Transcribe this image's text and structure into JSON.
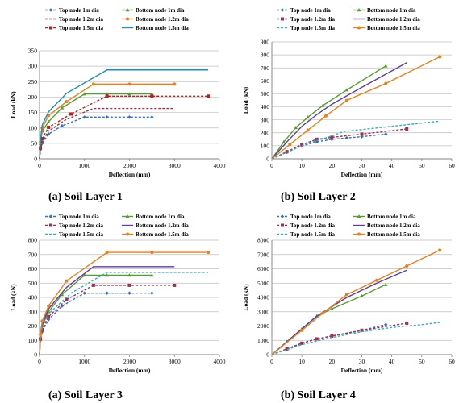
{
  "chart_data": [
    {
      "type": "line",
      "caption": "(a) Soil Layer 1",
      "xlabel": "Deflection (mm)",
      "ylabel": "Load (kN)",
      "xlim": [
        0,
        4000
      ],
      "ylim": [
        0,
        350
      ],
      "xticks": [
        0,
        1000,
        2000,
        3000,
        4000
      ],
      "yticks": [
        0,
        50,
        100,
        150,
        200,
        250,
        300,
        350
      ],
      "grid": "horizontal",
      "legend_position": "top",
      "series": [
        {
          "name": "Top node 1m dia",
          "color": "#3B6FB6",
          "dash": "dashed",
          "marker": "diamond",
          "points": [
            [
              0,
              0
            ],
            [
              20,
              30
            ],
            [
              60,
              50
            ],
            [
              200,
              80
            ],
            [
              500,
              107
            ],
            [
              1000,
              135
            ],
            [
              1500,
              135
            ],
            [
              2000,
              135
            ],
            [
              2500,
              135
            ]
          ]
        },
        {
          "name": "Bottom node 1m dia",
          "color": "#5A9A32",
          "dash": "solid",
          "marker": "triangle",
          "points": [
            [
              0,
              0
            ],
            [
              20,
              50
            ],
            [
              60,
              90
            ],
            [
              200,
              120
            ],
            [
              500,
              165
            ],
            [
              1000,
              210
            ],
            [
              1500,
              210
            ],
            [
              2000,
              210
            ],
            [
              2500,
              210
            ]
          ]
        },
        {
          "name": "Top node 1.2m dia",
          "color": "#A0304F",
          "dash": "dashed",
          "marker": "none",
          "points": [
            [
              0,
              0
            ],
            [
              20,
              32
            ],
            [
              60,
              55
            ],
            [
              200,
              90
            ],
            [
              600,
              128
            ],
            [
              1200,
              163
            ],
            [
              2000,
              163
            ],
            [
              3000,
              163
            ]
          ]
        },
        {
          "name": "Bottom node 1.2m dia",
          "color": "#E8801E",
          "dash": "solid",
          "marker": "circle",
          "points": [
            [
              0,
              0
            ],
            [
              20,
              55
            ],
            [
              60,
              100
            ],
            [
              200,
              140
            ],
            [
              600,
              185
            ],
            [
              1200,
              242
            ],
            [
              2000,
              242
            ],
            [
              3000,
              242
            ]
          ]
        },
        {
          "name": "Top node 1.5m dia",
          "color": "#B22222",
          "dash": "dashed",
          "marker": "square",
          "points": [
            [
              0,
              0
            ],
            [
              20,
              35
            ],
            [
              60,
              65
            ],
            [
              200,
              102
            ],
            [
              700,
              145
            ],
            [
              1500,
              203
            ],
            [
              2500,
              203
            ],
            [
              3750,
              203
            ]
          ]
        },
        {
          "name": "Bottom node 1.5m dia",
          "color": "#1E8FB8",
          "dash": "solid",
          "marker": "none",
          "points": [
            [
              0,
              0
            ],
            [
              20,
              60
            ],
            [
              60,
              110
            ],
            [
              200,
              152
            ],
            [
              600,
              212
            ],
            [
              1500,
              288
            ],
            [
              2500,
              288
            ],
            [
              3750,
              288
            ]
          ]
        }
      ]
    },
    {
      "type": "line",
      "caption": "(b) Soil Layer 2",
      "xlabel": "Deflection (mm)",
      "ylabel": "Load (kN)",
      "xlim": [
        0,
        60
      ],
      "ylim": [
        0,
        900
      ],
      "xticks": [
        0,
        10,
        20,
        30,
        40,
        50,
        60
      ],
      "yticks": [
        0,
        100,
        200,
        300,
        400,
        500,
        600,
        700,
        800,
        900
      ],
      "grid": "horizontal",
      "legend_position": "top",
      "series": [
        {
          "name": "Top node 1m dia",
          "color": "#3B6FB6",
          "dash": "dashed",
          "marker": "diamond",
          "points": [
            [
              0,
              0
            ],
            [
              5,
              50
            ],
            [
              10,
              100
            ],
            [
              15,
              130
            ],
            [
              20,
              150
            ],
            [
              25,
              160
            ],
            [
              30,
              170
            ],
            [
              38,
              190
            ]
          ]
        },
        {
          "name": "Bottom node 1m dia",
          "color": "#5A9A32",
          "dash": "solid",
          "marker": "triangle",
          "points": [
            [
              0,
              0
            ],
            [
              4,
              130
            ],
            [
              8,
              240
            ],
            [
              12,
              320
            ],
            [
              17,
              410
            ],
            [
              25,
              530
            ],
            [
              38,
              715
            ]
          ]
        },
        {
          "name": "Top node 1.2m dia",
          "color": "#A0304F",
          "dash": "dashed",
          "marker": "square",
          "points": [
            [
              0,
              0
            ],
            [
              5,
              55
            ],
            [
              10,
              110
            ],
            [
              15,
              150
            ],
            [
              20,
              165
            ],
            [
              30,
              190
            ],
            [
              45,
              230
            ]
          ]
        },
        {
          "name": "Bottom node 1.2m dia",
          "color": "#5C3E9E",
          "dash": "solid",
          "marker": "none",
          "points": [
            [
              0,
              0
            ],
            [
              5,
              130
            ],
            [
              10,
              250
            ],
            [
              15,
              340
            ],
            [
              20,
              420
            ],
            [
              30,
              550
            ],
            [
              45,
              740
            ]
          ]
        },
        {
          "name": "Top node 1.5m dia",
          "color": "#3AA9C9",
          "dash": "dashed",
          "marker": "none",
          "points": [
            [
              0,
              0
            ],
            [
              6,
              60
            ],
            [
              12,
              120
            ],
            [
              18,
              160
            ],
            [
              24,
              210
            ],
            [
              36,
              240
            ],
            [
              48,
              270
            ],
            [
              56,
              290
            ]
          ]
        },
        {
          "name": "Bottom node 1.5m dia",
          "color": "#E8801E",
          "dash": "solid",
          "marker": "circle",
          "points": [
            [
              0,
              0
            ],
            [
              6,
              110
            ],
            [
              12,
              220
            ],
            [
              18,
              330
            ],
            [
              25,
              450
            ],
            [
              38,
              580
            ],
            [
              56,
              785
            ]
          ]
        }
      ]
    },
    {
      "type": "line",
      "caption": "(a) Soil Layer 3",
      "xlabel": "Deflection (mm)",
      "ylabel": "Load (kN)",
      "xlim": [
        0,
        4000
      ],
      "ylim": [
        0,
        800
      ],
      "xticks": [
        0,
        1000,
        2000,
        3000,
        4000
      ],
      "yticks": [
        0,
        100,
        200,
        300,
        400,
        500,
        600,
        700,
        800
      ],
      "grid": "horizontal",
      "legend_position": "top",
      "series": [
        {
          "name": "Top node 1m dia",
          "color": "#3B6FB6",
          "dash": "dashed",
          "marker": "diamond",
          "points": [
            [
              0,
              0
            ],
            [
              20,
              100
            ],
            [
              60,
              160
            ],
            [
              200,
              245
            ],
            [
              500,
              340
            ],
            [
              1000,
              430
            ],
            [
              1500,
              430
            ],
            [
              2000,
              430
            ],
            [
              2500,
              430
            ]
          ]
        },
        {
          "name": "Bottom node 1m dia",
          "color": "#5A9A32",
          "dash": "solid",
          "marker": "triangle",
          "points": [
            [
              0,
              0
            ],
            [
              20,
              120
            ],
            [
              60,
              200
            ],
            [
              200,
              300
            ],
            [
              500,
              420
            ],
            [
              1000,
              555
            ],
            [
              1500,
              555
            ],
            [
              2000,
              555
            ],
            [
              2500,
              555
            ]
          ]
        },
        {
          "name": "Top node 1.2m dia",
          "color": "#A0304F",
          "dash": "dashed",
          "marker": "square",
          "points": [
            [
              0,
              0
            ],
            [
              20,
              110
            ],
            [
              60,
              175
            ],
            [
              200,
              265
            ],
            [
              600,
              385
            ],
            [
              1200,
              485
            ],
            [
              2000,
              485
            ],
            [
              3000,
              485
            ]
          ]
        },
        {
          "name": "Bottom node 1.2m dia",
          "color": "#5C3E9E",
          "dash": "solid",
          "marker": "none",
          "points": [
            [
              0,
              0
            ],
            [
              20,
              130
            ],
            [
              60,
              215
            ],
            [
              200,
              320
            ],
            [
              600,
              470
            ],
            [
              1200,
              615
            ],
            [
              2000,
              615
            ],
            [
              3000,
              615
            ]
          ]
        },
        {
          "name": "Top node 1.5m dia",
          "color": "#3AA9C9",
          "dash": "dashed",
          "marker": "none",
          "points": [
            [
              0,
              0
            ],
            [
              20,
              115
            ],
            [
              60,
              190
            ],
            [
              200,
              285
            ],
            [
              700,
              430
            ],
            [
              1500,
              575
            ],
            [
              2500,
              575
            ],
            [
              3750,
              575
            ]
          ]
        },
        {
          "name": "Bottom node 1.5m dia",
          "color": "#E8801E",
          "dash": "solid",
          "marker": "circle",
          "points": [
            [
              0,
              0
            ],
            [
              20,
              140
            ],
            [
              60,
              235
            ],
            [
              200,
              340
            ],
            [
              600,
              515
            ],
            [
              1500,
              715
            ],
            [
              2500,
              715
            ],
            [
              3750,
              715
            ]
          ]
        }
      ]
    },
    {
      "type": "line",
      "caption": "(b) Soil Layer 4",
      "xlabel": "Deflection (mm)",
      "ylabel": "Load (kN)",
      "xlim": [
        0,
        60
      ],
      "ylim": [
        0,
        8000
      ],
      "xticks": [
        0,
        10,
        20,
        30,
        40,
        50,
        60
      ],
      "yticks": [
        0,
        1000,
        2000,
        3000,
        4000,
        5000,
        6000,
        7000,
        8000
      ],
      "grid": "horizontal",
      "legend_position": "top",
      "series": [
        {
          "name": "Top node 1m dia",
          "color": "#3B6FB6",
          "dash": "dashed",
          "marker": "diamond",
          "points": [
            [
              0,
              0
            ],
            [
              5,
              400
            ],
            [
              10,
              800
            ],
            [
              15,
              1100
            ],
            [
              20,
              1300
            ],
            [
              30,
              1700
            ],
            [
              38,
              2100
            ]
          ]
        },
        {
          "name": "Bottom node 1m dia",
          "color": "#5A9A32",
          "dash": "solid",
          "marker": "triangle",
          "points": [
            [
              0,
              0
            ],
            [
              5,
              900
            ],
            [
              10,
              1800
            ],
            [
              15,
              2700
            ],
            [
              20,
              3200
            ],
            [
              30,
              4100
            ],
            [
              38,
              4900
            ]
          ]
        },
        {
          "name": "Top node 1.2m dia",
          "color": "#A0304F",
          "dash": "dashed",
          "marker": "square",
          "points": [
            [
              0,
              0
            ],
            [
              5,
              400
            ],
            [
              10,
              800
            ],
            [
              15,
              1100
            ],
            [
              20,
              1300
            ],
            [
              30,
              1700
            ],
            [
              45,
              2200
            ]
          ]
        },
        {
          "name": "Bottom node 1.2m dia",
          "color": "#5C3E9E",
          "dash": "solid",
          "marker": "none",
          "points": [
            [
              0,
              0
            ],
            [
              5,
              900
            ],
            [
              10,
              1800
            ],
            [
              15,
              2700
            ],
            [
              25,
              4000
            ],
            [
              35,
              5000
            ],
            [
              45,
              5900
            ]
          ]
        },
        {
          "name": "Top node 1.5m dia",
          "color": "#3AA9C9",
          "dash": "dashed",
          "marker": "none",
          "points": [
            [
              0,
              0
            ],
            [
              10,
              700
            ],
            [
              20,
              1200
            ],
            [
              30,
              1600
            ],
            [
              40,
              1900
            ],
            [
              50,
              2100
            ],
            [
              56,
              2250
            ]
          ]
        },
        {
          "name": "Bottom node 1.5m dia",
          "color": "#E8801E",
          "dash": "solid",
          "marker": "circle",
          "points": [
            [
              0,
              0
            ],
            [
              10,
              1700
            ],
            [
              17,
              2900
            ],
            [
              25,
              4200
            ],
            [
              35,
              5200
            ],
            [
              45,
              6200
            ],
            [
              56,
              7300
            ]
          ]
        }
      ]
    }
  ]
}
